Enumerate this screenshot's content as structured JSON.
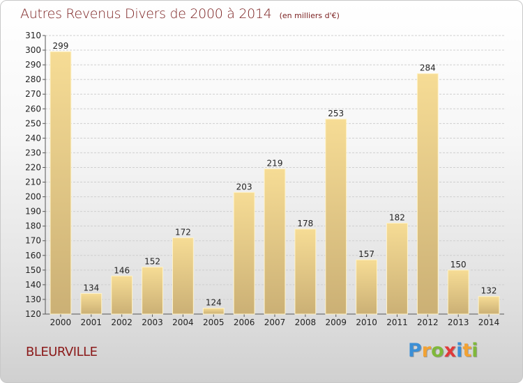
{
  "header": {
    "title": "Autres Revenus Divers de 2000 à 2014",
    "unit": "(en milliers d'€)"
  },
  "footer": {
    "town": "BLEURVILLE",
    "logo_letters": [
      "P",
      "r",
      "o",
      "x",
      "i",
      "t",
      "i"
    ],
    "logo_colors": [
      "#3b8fd6",
      "#f2a233",
      "#7fb83a",
      "#e03a3a",
      "#3b8fd6",
      "#f2a233",
      "#7fb83a"
    ]
  },
  "chart_data": {
    "type": "bar",
    "categories": [
      "2000",
      "2001",
      "2002",
      "2003",
      "2004",
      "2005",
      "2006",
      "2007",
      "2008",
      "2009",
      "2010",
      "2011",
      "2012",
      "2013",
      "2014"
    ],
    "values": [
      299,
      134,
      146,
      152,
      172,
      124,
      203,
      219,
      178,
      253,
      157,
      182,
      284,
      150,
      132
    ],
    "title": "Autres Revenus Divers de 2000 à 2014",
    "xlabel": "",
    "ylabel": "",
    "ylim": [
      120,
      310
    ],
    "yticks": [
      120,
      130,
      140,
      150,
      160,
      170,
      180,
      190,
      200,
      210,
      220,
      230,
      240,
      250,
      260,
      270,
      280,
      290,
      300,
      310
    ],
    "grid": true,
    "bar_color": "#e8cc7e",
    "bar_edge_color": "#c9a860"
  }
}
